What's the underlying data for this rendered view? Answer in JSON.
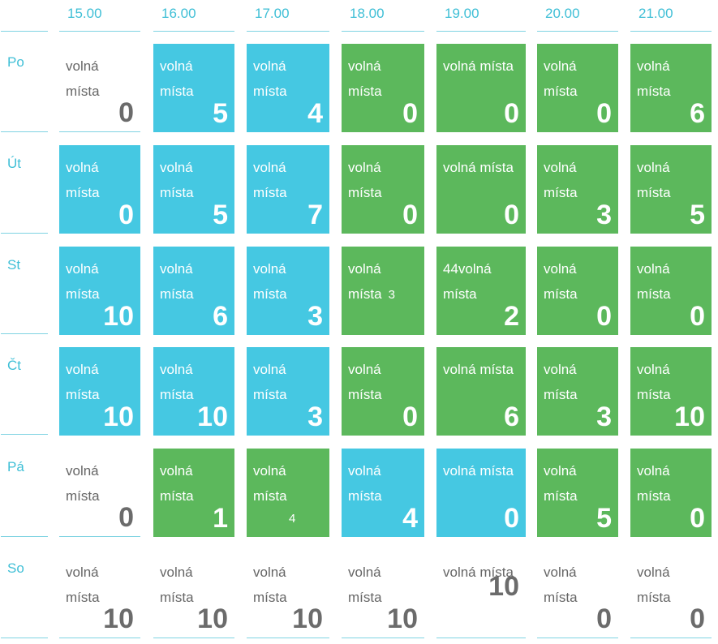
{
  "times": [
    "15.00",
    "16.00",
    "17.00",
    "18.00",
    "19.00",
    "20.00",
    "21.00"
  ],
  "days": [
    "Po",
    "Út",
    "St",
    "Čt",
    "Pá",
    "So"
  ],
  "slot_label": "volná místa",
  "slot_label_line1": "volná",
  "slot_label_line2": "místa",
  "colors": {
    "green": "#5cb85c",
    "blue": "#45c8e2",
    "accent": "#3fbfd6",
    "text_gray": "#6b6b6b"
  },
  "grid": [
    [
      {
        "status": "empty",
        "value": "0"
      },
      {
        "status": "blue",
        "value": "5"
      },
      {
        "status": "blue",
        "value": "4"
      },
      {
        "status": "green",
        "value": "0"
      },
      {
        "status": "green",
        "value": "0",
        "single_line": true
      },
      {
        "status": "green",
        "value": "0"
      },
      {
        "status": "green",
        "value": "6"
      }
    ],
    [
      {
        "status": "blue",
        "value": "0"
      },
      {
        "status": "blue",
        "value": "5"
      },
      {
        "status": "blue",
        "value": "7"
      },
      {
        "status": "green",
        "value": "0"
      },
      {
        "status": "green",
        "value": "0",
        "single_line": true
      },
      {
        "status": "green",
        "value": "3"
      },
      {
        "status": "green",
        "value": "5"
      }
    ],
    [
      {
        "status": "blue",
        "value": "10"
      },
      {
        "status": "blue",
        "value": "6"
      },
      {
        "status": "blue",
        "value": "3"
      },
      {
        "status": "green",
        "value": "",
        "extra_inline": "3"
      },
      {
        "status": "green",
        "value": "2",
        "prefix": "44"
      },
      {
        "status": "green",
        "value": "0"
      },
      {
        "status": "green",
        "value": "0"
      }
    ],
    [
      {
        "status": "blue",
        "value": "10"
      },
      {
        "status": "blue",
        "value": "10"
      },
      {
        "status": "blue",
        "value": "3"
      },
      {
        "status": "green",
        "value": "0"
      },
      {
        "status": "green",
        "value": "6",
        "single_line": true
      },
      {
        "status": "green",
        "value": "3"
      },
      {
        "status": "green",
        "value": "10"
      }
    ],
    [
      {
        "status": "empty",
        "value": "0"
      },
      {
        "status": "green",
        "value": "1"
      },
      {
        "status": "green",
        "value": "",
        "extra_small": "4"
      },
      {
        "status": "blue",
        "value": "4"
      },
      {
        "status": "blue",
        "value": "0",
        "single_line": true
      },
      {
        "status": "green",
        "value": "5"
      },
      {
        "status": "green",
        "value": "0"
      }
    ],
    [
      {
        "status": "empty",
        "value": "10"
      },
      {
        "status": "empty",
        "value": "10"
      },
      {
        "status": "empty",
        "value": "10"
      },
      {
        "status": "empty",
        "value": "10"
      },
      {
        "status": "empty",
        "value": "10",
        "single_line": true,
        "value_mid": true
      },
      {
        "status": "empty",
        "value": "0"
      },
      {
        "status": "empty",
        "value": "0"
      }
    ]
  ]
}
